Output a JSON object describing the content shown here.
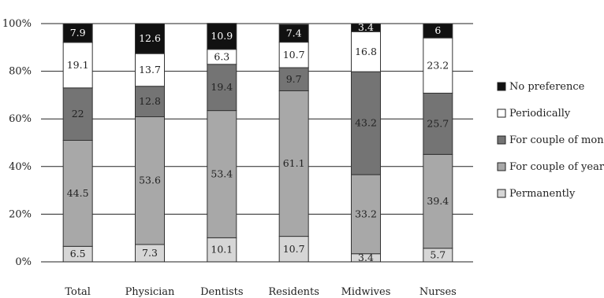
{
  "chart_data": {
    "type": "bar",
    "stacked": true,
    "categories": [
      "Total",
      "Physician",
      "Dentists",
      "Residents",
      "Midwives",
      "Nurses"
    ],
    "series": [
      {
        "name": "Permanently",
        "color": "#d6d6d6",
        "values": [
          6.5,
          7.3,
          10.1,
          10.7,
          3.4,
          5.7
        ]
      },
      {
        "name": "For couple of years",
        "color": "#a8a8a8",
        "values": [
          44.5,
          53.6,
          53.4,
          61.1,
          33.2,
          39.4
        ]
      },
      {
        "name": "For couple of month",
        "color": "#747474",
        "values": [
          22,
          12.8,
          19.4,
          9.7,
          43.2,
          25.7
        ]
      },
      {
        "name": "Periodically",
        "color": "#ffffff",
        "values": [
          19.1,
          13.7,
          6.3,
          10.7,
          16.8,
          23.2
        ]
      },
      {
        "name": "No preference",
        "color": "#111111",
        "values": [
          7.9,
          12.6,
          10.9,
          7.4,
          3.4,
          6
        ]
      }
    ],
    "ylim": [
      0,
      100
    ],
    "yticks": [
      "0%",
      "20%",
      "40%",
      "60%",
      "80%",
      "100%"
    ],
    "grid": true,
    "legend_position": "right",
    "title": "",
    "xlabel": "",
    "ylabel": ""
  }
}
